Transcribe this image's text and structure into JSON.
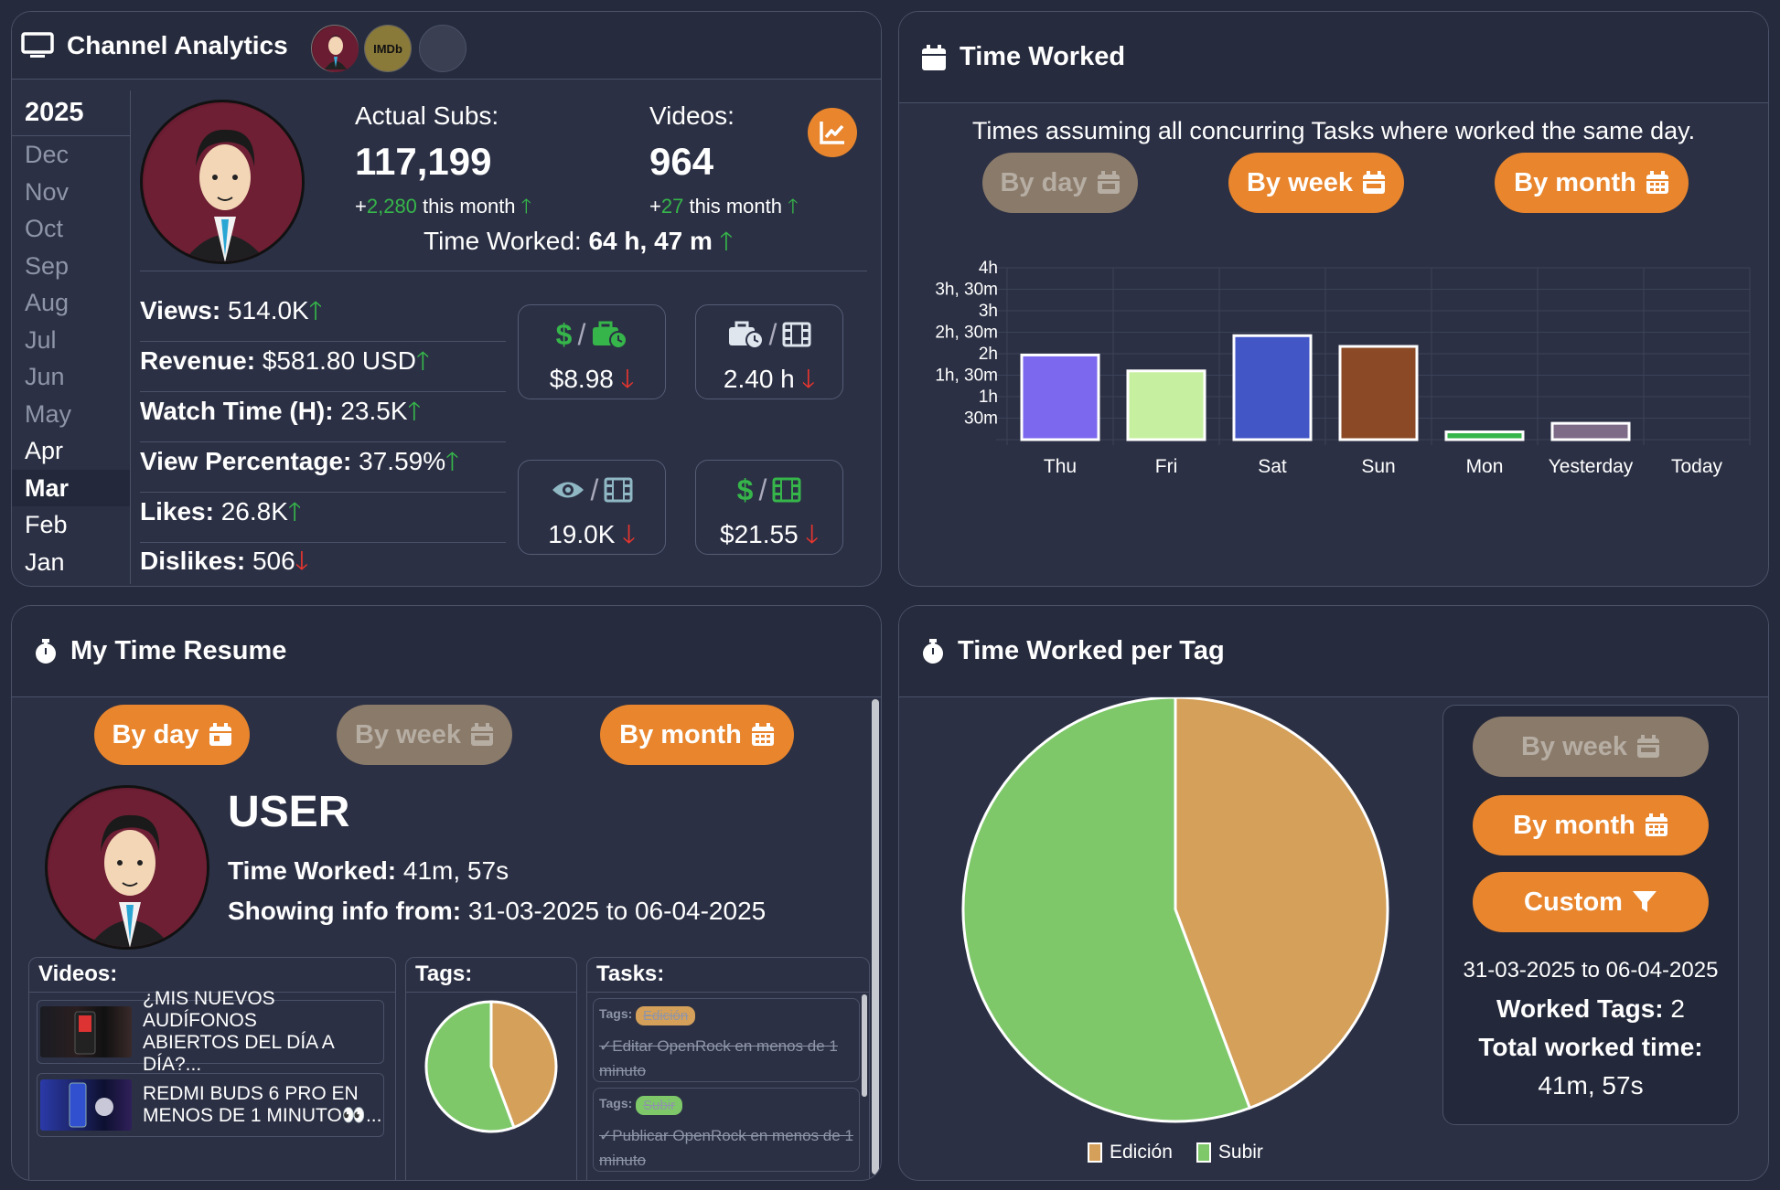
{
  "channel": {
    "title": "Channel Analytics",
    "chip2": "IMDb",
    "year": "2025",
    "months": [
      {
        "label": "Dec",
        "state": "dim"
      },
      {
        "label": "Nov",
        "state": "dim"
      },
      {
        "label": "Oct",
        "state": "dim"
      },
      {
        "label": "Sep",
        "state": "dim"
      },
      {
        "label": "Aug",
        "state": "dim"
      },
      {
        "label": "Jul",
        "state": "dim"
      },
      {
        "label": "Jun",
        "state": "dim"
      },
      {
        "label": "May",
        "state": "dim"
      },
      {
        "label": "Apr",
        "state": "active"
      },
      {
        "label": "Mar",
        "state": "selected"
      },
      {
        "label": "Feb",
        "state": "active"
      },
      {
        "label": "Jan",
        "state": "active"
      }
    ],
    "subs_label": "Actual Subs:",
    "subs_value": "117,199",
    "subs_delta_plus": "+",
    "subs_delta": "2,280",
    "subs_delta_text": "this month",
    "videos_label": "Videos:",
    "videos_value": "964",
    "videos_delta_plus": "+",
    "videos_delta": "27",
    "videos_delta_text": "this month",
    "time_worked_label": "Time Worked:",
    "time_worked_value": "64 h, 47 m",
    "metrics": [
      {
        "label": "Views:",
        "value": "514.0K",
        "trend": "up"
      },
      {
        "label": "Revenue:",
        "value": "$581.80 USD",
        "trend": "up"
      },
      {
        "label": "Watch Time (H):",
        "value": "23.5K",
        "trend": "up"
      },
      {
        "label": "View Percentage:",
        "value": "37.59%",
        "trend": "up"
      },
      {
        "label": "Likes:",
        "value": "26.8K",
        "trend": "up"
      },
      {
        "label": "Dislikes:",
        "value": "506",
        "trend": "down"
      }
    ],
    "ratios": [
      {
        "value": "$8.98",
        "trend": "down"
      },
      {
        "value": "2.40 h",
        "trend": "down"
      },
      {
        "value": "19.0K",
        "trend": "down"
      },
      {
        "value": "$21.55",
        "trend": "down"
      }
    ],
    "colors": {
      "accent": "#e8852d",
      "up": "#36b54a",
      "down": "#e8352e"
    }
  },
  "time_worked": {
    "title": "Time Worked",
    "note": "Times assuming all concurring Tasks where worked the same day.",
    "buttons": {
      "by_day": "By day",
      "by_week": "By week",
      "by_month": "By month"
    },
    "chart_data": {
      "type": "bar",
      "categories": [
        "Thu",
        "Fri",
        "Sat",
        "Sun",
        "Mon",
        "Yesterday",
        "Today"
      ],
      "values": [
        1.97,
        1.6,
        2.42,
        2.17,
        0.18,
        0.38,
        0
      ],
      "colors": [
        "#7b68ee",
        "#c6f0a0",
        "#4356c6",
        "#8b4a25",
        "#36b54a",
        "#7e6b87",
        "#ffffff"
      ],
      "ylim": [
        0,
        4
      ],
      "y_ticks": [
        "30m",
        "1h",
        "1h, 30m",
        "2h",
        "2h, 30m",
        "3h",
        "3h, 30m",
        "4h"
      ],
      "grid": true
    }
  },
  "resume": {
    "title": "My Time Resume",
    "buttons": {
      "by_day": "By day",
      "by_week": "By week",
      "by_month": "By month"
    },
    "user": "USER",
    "time_label": "Time Worked:",
    "time_value": "41m, 57s",
    "showing_label": "Showing info from:",
    "showing_value": "31-03-2025 to 06-04-2025",
    "videos_header": "Videos:",
    "tags_header": "Tags:",
    "tasks_header": "Tasks:",
    "videos": [
      {
        "line1": "¿MIS NUEVOS AUDÍFONOS",
        "line2": "ABIERTOS DEL DÍA A DÍA?..."
      },
      {
        "line1": "REDMI BUDS 6 PRO EN",
        "line2": "MENOS DE 1 MINUTO"
      }
    ],
    "tasks": [
      {
        "tags_label": "Tags:",
        "tag": "Edición",
        "tag_color": "#d4a05a",
        "text": "✓Editar OpenRock en menos de 1 minuto"
      },
      {
        "tags_label": "Tags:",
        "tag": "Subir",
        "tag_color": "#7ec86a",
        "text": "✓Publicar OpenRock en menos de 1 minuto"
      }
    ],
    "chart_data": {
      "type": "pie",
      "labels": [
        "Edición",
        "Subir"
      ],
      "values": [
        44.3,
        55.7
      ],
      "colors": [
        "#d4a05a",
        "#7ec86a"
      ]
    }
  },
  "per_tag": {
    "title": "Time Worked per Tag",
    "buttons": {
      "by_week": "By week",
      "by_month": "By month",
      "custom": "Custom"
    },
    "range": "31-03-2025 to 06-04-2025",
    "worked_tags_label": "Worked Tags:",
    "worked_tags_value": "2",
    "total_label": "Total worked time:",
    "total_value": "41m, 57s",
    "chart_data": {
      "type": "pie",
      "labels": [
        "Edición",
        "Subir"
      ],
      "values": [
        44.3,
        55.7
      ],
      "colors": [
        "#d4a05a",
        "#7ec86a"
      ],
      "legend": "bottom"
    }
  }
}
